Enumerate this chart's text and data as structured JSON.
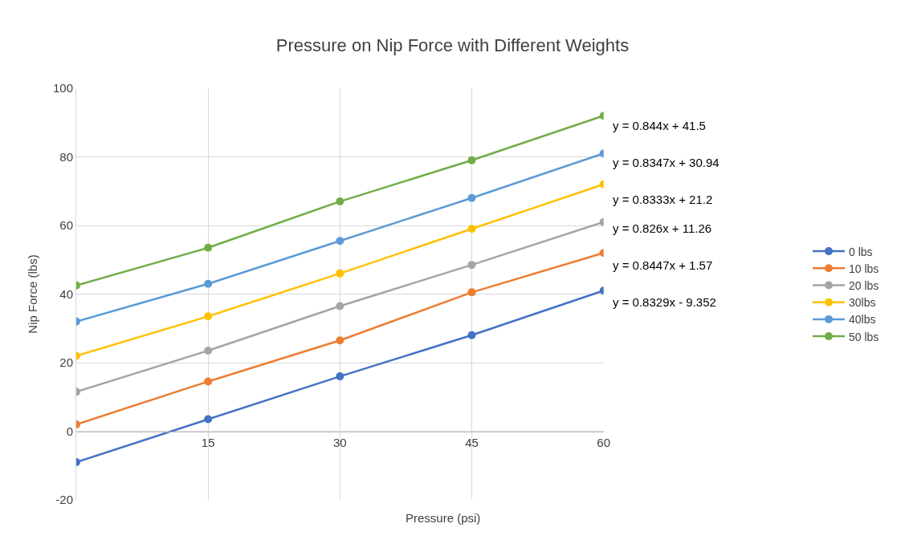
{
  "chart_data": {
    "type": "line",
    "title": "Pressure on Nip Force with Different Weights",
    "xlabel": "Pressure (psi)",
    "ylabel": "Nip Force (lbs)",
    "x": [
      0,
      15,
      30,
      45,
      60
    ],
    "series": [
      {
        "name": "0 lbs",
        "color": "#4472c4",
        "values": [
          -9,
          3.5,
          16,
          28,
          41
        ]
      },
      {
        "name": "10 lbs",
        "color": "#ed7d31",
        "values": [
          2,
          14.5,
          26.5,
          40.5,
          52
        ]
      },
      {
        "name": "20 lbs",
        "color": "#a5a5a5",
        "values": [
          11.5,
          23.5,
          36.5,
          48.5,
          61
        ]
      },
      {
        "name": "30lbs",
        "color": "#ffc000",
        "values": [
          22,
          33.5,
          46,
          59,
          72
        ]
      },
      {
        "name": "40lbs",
        "color": "#5b9bd5",
        "values": [
          32,
          43,
          55.5,
          68,
          81
        ]
      },
      {
        "name": "50 lbs",
        "color": "#70ad47",
        "values": [
          42.5,
          53.5,
          67,
          79,
          92
        ]
      }
    ],
    "annotations": [
      "y = 0.844x + 41.5",
      "y = 0.8347x + 30.94",
      "y = 0.8333x + 21.2",
      "y = 0.826x + 11.26",
      "y = 0.8447x + 1.57",
      "y = 0.8329x - 9.352"
    ],
    "xlim": [
      0,
      60
    ],
    "xticks": [
      15,
      30,
      45,
      60
    ],
    "ylim": [
      -20,
      100
    ],
    "yticks": [
      -20,
      0,
      20,
      40,
      60,
      80,
      100
    ],
    "grid": true,
    "legend": "right",
    "marker": "circle",
    "line_style": "solid"
  }
}
